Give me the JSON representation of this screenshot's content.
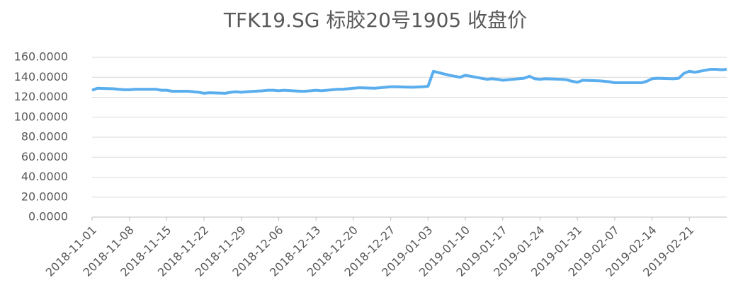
{
  "chart_data": {
    "type": "line",
    "title": "TFK19.SG 标胶20号1905 收盘价",
    "x": [
      "2018-11-01",
      "2018-11-02",
      "2018-11-05",
      "2018-11-06",
      "2018-11-07",
      "2018-11-08",
      "2018-11-09",
      "2018-11-12",
      "2018-11-13",
      "2018-11-14",
      "2018-11-15",
      "2018-11-16",
      "2018-11-19",
      "2018-11-20",
      "2018-11-21",
      "2018-11-22",
      "2018-11-23",
      "2018-11-26",
      "2018-11-27",
      "2018-11-28",
      "2018-11-29",
      "2018-11-30",
      "2018-12-03",
      "2018-12-04",
      "2018-12-05",
      "2018-12-06",
      "2018-12-07",
      "2018-12-10",
      "2018-12-11",
      "2018-12-12",
      "2018-12-13",
      "2018-12-14",
      "2018-12-17",
      "2018-12-18",
      "2018-12-19",
      "2018-12-20",
      "2018-12-21",
      "2018-12-24",
      "2018-12-26",
      "2018-12-27",
      "2018-12-28",
      "2018-12-31",
      "2019-01-02",
      "2019-01-03",
      "2019-01-04",
      "2019-01-07",
      "2019-01-08",
      "2019-01-09",
      "2019-01-10",
      "2019-01-11",
      "2019-01-14",
      "2019-01-15",
      "2019-01-16",
      "2019-01-17",
      "2019-01-18",
      "2019-01-21",
      "2019-01-22",
      "2019-01-23",
      "2019-01-24",
      "2019-01-25",
      "2019-01-28",
      "2019-01-29",
      "2019-01-30",
      "2019-01-31",
      "2019-02-01",
      "2019-02-04",
      "2019-02-05",
      "2019-02-06",
      "2019-02-07",
      "2019-02-08",
      "2019-02-11",
      "2019-02-12",
      "2019-02-13",
      "2019-02-14",
      "2019-02-15",
      "2019-02-18",
      "2019-02-19",
      "2019-02-20",
      "2019-02-21",
      "2019-02-22",
      "2019-02-25",
      "2019-02-26",
      "2019-02-27",
      "2019-02-28"
    ],
    "series": [
      {
        "name": "收盘价",
        "color": "#5aaeee",
        "values": [
          127,
          129,
          128.5,
          128,
          127.5,
          127.5,
          128,
          128,
          128,
          127,
          127,
          126,
          126,
          125.5,
          125,
          124,
          124.5,
          124,
          125,
          125.5,
          125,
          125.5,
          126.5,
          127,
          127,
          126.5,
          127,
          126,
          126,
          126.5,
          127,
          126.5,
          128,
          128,
          128.5,
          129,
          129.5,
          129,
          130,
          130.5,
          130.5,
          130,
          130.5,
          131,
          146,
          142,
          141,
          140,
          142,
          141,
          138,
          138.5,
          138,
          137,
          137.5,
          139,
          141,
          138.5,
          138,
          138.5,
          138,
          137.5,
          136,
          135,
          137,
          136.5,
          136,
          135.5,
          134.5,
          134.5,
          134.5,
          134.5,
          136,
          138.5,
          139,
          138.5,
          139,
          144,
          146,
          145,
          148,
          148,
          147.5,
          148
        ]
      }
    ],
    "xlim": [
      "2018-11-01",
      "2019-02-28"
    ],
    "xticks": [
      "2018-11-01",
      "2018-11-08",
      "2018-11-15",
      "2018-11-22",
      "2018-11-29",
      "2018-12-06",
      "2018-12-13",
      "2018-12-20",
      "2018-12-27",
      "2019-01-03",
      "2019-01-10",
      "2019-01-17",
      "2019-01-24",
      "2019-01-31",
      "2019-02-07",
      "2019-02-14",
      "2019-02-21"
    ],
    "ylim": [
      0,
      160
    ],
    "yticks": [
      {
        "value": 0,
        "label": "0.0000"
      },
      {
        "value": 20,
        "label": "20.0000"
      },
      {
        "value": 40,
        "label": "40.0000"
      },
      {
        "value": 60,
        "label": "60.0000"
      },
      {
        "value": 80,
        "label": "80.0000"
      },
      {
        "value": 100,
        "label": "100.0000"
      },
      {
        "value": 120,
        "label": "120.0000"
      },
      {
        "value": 140,
        "label": "140.0000"
      },
      {
        "value": 160,
        "label": "160.0000"
      }
    ],
    "grid": true
  }
}
